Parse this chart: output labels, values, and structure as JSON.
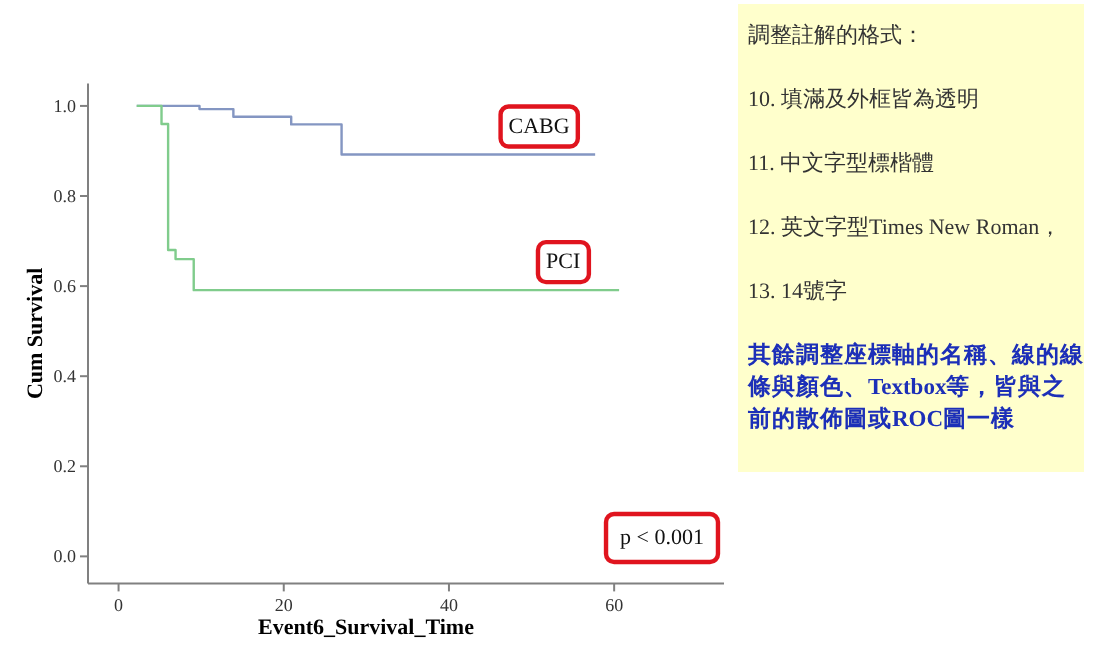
{
  "chart_data": {
    "type": "step",
    "xlabel": "Event6_Survival_Time",
    "ylabel": "Cum Survival",
    "series": [
      {
        "name": "CABG",
        "color": "#8496c2",
        "x": [
          2.2,
          9.8,
          13.9,
          20.9,
          27,
          57.7
        ],
        "values": [
          1.0,
          0.993,
          0.976,
          0.959,
          0.892,
          0.892
        ]
      },
      {
        "name": "PCI",
        "color": "#80cc8c",
        "x": [
          2.2,
          5.2,
          6.0,
          6.9,
          9.1,
          60.6
        ],
        "values": [
          1.0,
          0.96,
          0.68,
          0.66,
          0.591,
          0.591
        ]
      }
    ],
    "xlim": [
      -3.7,
      73.3
    ],
    "ylim": [
      -0.06,
      1.05
    ],
    "xticks": [
      0,
      20,
      40,
      60
    ],
    "yticks": [
      {
        "value": 0,
        "label": "0.0"
      },
      0.2,
      0.4,
      0.6,
      0.8,
      {
        "value": 1,
        "label": "1.0"
      }
    ],
    "grid": false,
    "annotations": [
      "調整註解的格式：",
      "10. 填滿及外框皆為透明",
      "11. 中文字型標楷體",
      "12. 英文字型Times New Roman，",
      "13. 14號字",
      "其餘調整座標軸的名稱、線的線條與顏色、Textbox等，皆與之前的散佈圖或ROC圖一樣",
      "p < 0.001"
    ]
  }
}
